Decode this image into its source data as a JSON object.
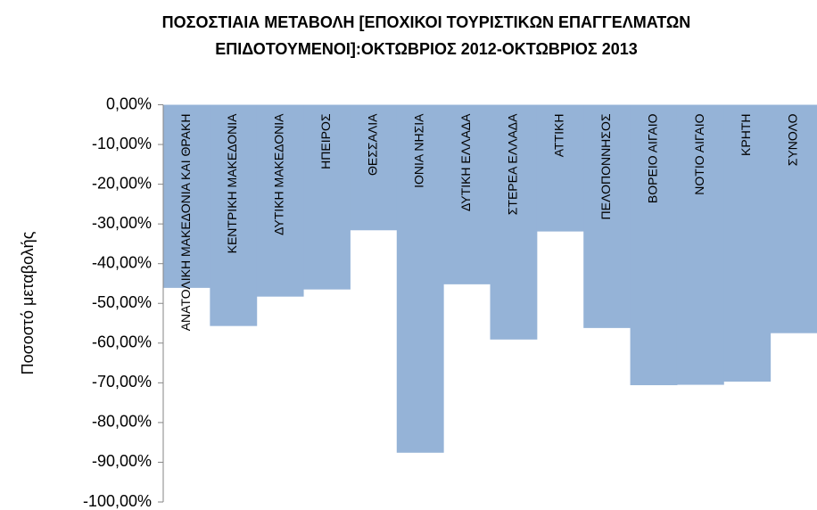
{
  "chart_data": {
    "type": "bar",
    "title": [
      "ΠΟΣΟΣΤΙΑΙΑ ΜΕΤΑΒΟΛΗ [ΕΠΟΧΙΚΟΙ ΤΟΥΡΙΣΤΙΚΩΝ ΕΠΑΓΓΕΛΜΑΤΩΝ",
      "ΕΠΙΔΟΤΟΥΜΕΝΟΙ]:ΟΚΤΩΒΡΙΟΣ 2012-ΟΚΤΩΒΡΙΟΣ 2013"
    ],
    "y_label": "Ποσοστό μεταβολής",
    "categories": [
      "ΑΝΑΤΟΛΙΚΗ ΜΑΚΕΔΟΝΙΑ ΚΑΙ ΘΡΑΚΗ",
      "ΚΕΝΤΡΙΚΗ ΜΑΚΕΔΟΝΙΑ",
      "ΔΥΤΙΚΗ ΜΑΚΕΔΟΝΙΑ",
      "ΗΠΕΙΡΟΣ",
      "ΘΕΣΣΑΛΙΑ",
      "ΙΟΝΙΑ ΝΗΣΙΑ",
      "ΔΥΤΙΚΗ ΕΛΛΑΔΑ",
      "ΣΤΕΡΕΑ ΕΛΛΑΔΑ",
      "ΑΤΤΙΚΗ",
      "ΠΕΛΟΠΟΝΝΗΣΟΣ",
      "ΒΟΡΕΙΟ ΑΙΓΑΙΟ",
      "ΝΟΤΙΟ ΑΙΓΑΙΟ",
      "ΚΡΗΤΗ",
      "ΣΥΝΟΛΟ"
    ],
    "values": [
      -46.1,
      -55.7,
      -48.3,
      -46.5,
      -31.6,
      -87.6,
      -45.2,
      -59.1,
      -31.9,
      -56.2,
      -70.6,
      -70.5,
      -69.7,
      -57.5
    ],
    "color": "#95b3d7",
    "ylim": [
      -100,
      0
    ],
    "yticks": [
      {
        "value": 0,
        "label": "0,00%"
      },
      {
        "value": -10,
        "label": "-10,00%"
      },
      {
        "value": -20,
        "label": "-20,00%"
      },
      {
        "value": -30,
        "label": "-30,00%"
      },
      {
        "value": -40,
        "label": "-40,00%"
      },
      {
        "value": -50,
        "label": "-50,00%"
      },
      {
        "value": -60,
        "label": "-60,00%"
      },
      {
        "value": -70,
        "label": "-70,00%"
      },
      {
        "value": -80,
        "label": "-80,00%"
      },
      {
        "value": -90,
        "label": "-90,00%"
      },
      {
        "value": -100,
        "label": "-100,00%"
      }
    ]
  }
}
